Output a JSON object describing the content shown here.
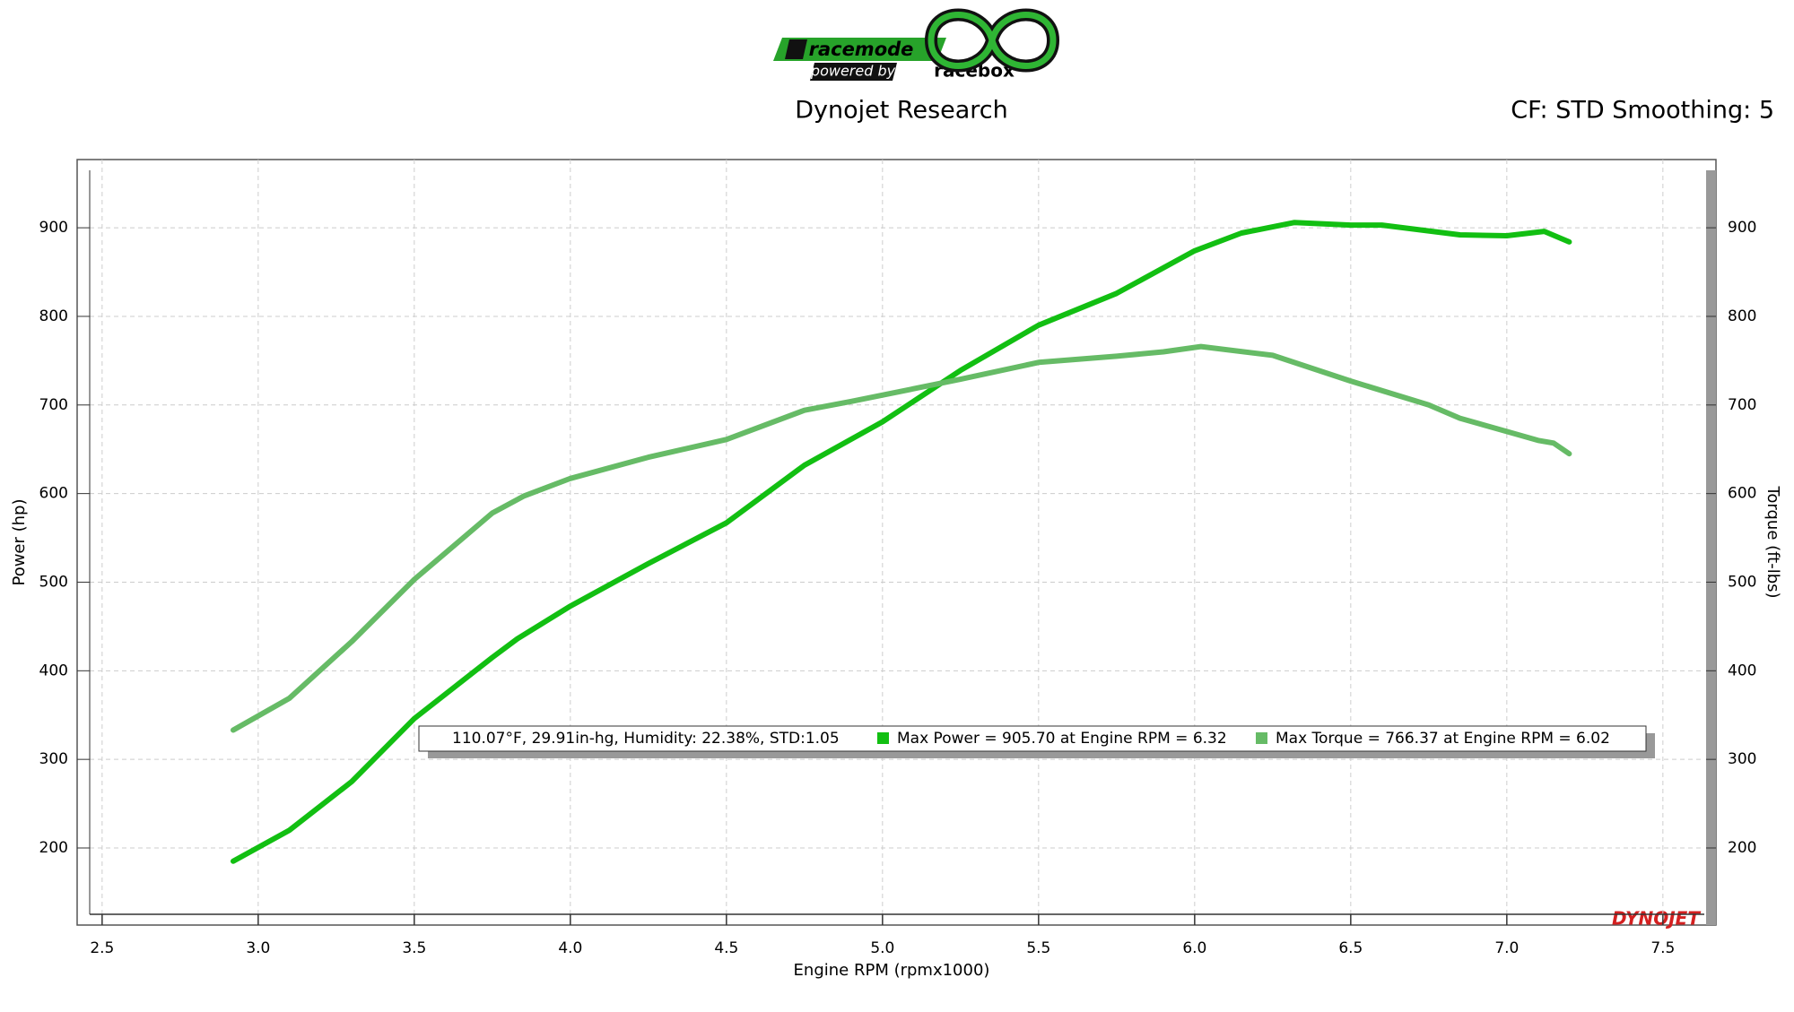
{
  "logo": {
    "brand": "racemode",
    "powered": "powered by",
    "partner": "racebox"
  },
  "watermark": "DYNOJET",
  "chart_data": {
    "type": "line",
    "title": "Dynojet Research",
    "subtitle": "CF: STD Smoothing: 5",
    "x_label": "Engine RPM (rpmx1000)",
    "y_label": "Power (hp)",
    "y2_label": "Torque (ft-lbs)",
    "annotation": "110.07°F, 29.91in-hg, Humidity: 22.38%, STD:1.05",
    "xlim": [
      2.42,
      7.67
    ],
    "xticks": [
      2.5,
      {
        "value": 3,
        "label": "3.0"
      },
      3.5,
      {
        "value": 4,
        "label": "4.0"
      },
      4.5,
      {
        "value": 5,
        "label": "5.0"
      },
      5.5,
      {
        "value": 6,
        "label": "6.0"
      },
      6.5,
      {
        "value": 7,
        "label": "7.0"
      },
      7.5
    ],
    "ylim": [
      113,
      977
    ],
    "yticks": [
      200,
      300,
      400,
      500,
      600,
      700,
      800,
      900
    ],
    "y2lim": [
      113,
      977
    ],
    "y2ticks": [
      200,
      300,
      400,
      500,
      600,
      700,
      800,
      900
    ],
    "grid": true,
    "series": [
      {
        "name": "Max Power = 905.70 at Engine RPM = 6.32",
        "color": "#12bf12",
        "x": [
          2.92,
          3.1,
          3.3,
          3.5,
          3.75,
          3.83,
          4.0,
          4.25,
          4.5,
          4.75,
          5.0,
          5.25,
          5.5,
          5.75,
          6.0,
          6.15,
          6.32,
          6.5,
          6.6,
          6.85,
          7.0,
          7.12,
          7.2
        ],
        "values": [
          185,
          220,
          275,
          346,
          415,
          436,
          473,
          521,
          567,
          632,
          681,
          739,
          790,
          826,
          874,
          894,
          906,
          903,
          903,
          892,
          891,
          896,
          884
        ]
      },
      {
        "name": "Max Torque = 766.37 at Engine RPM = 6.02",
        "color": "#66bb66",
        "axis": "y2",
        "x": [
          2.92,
          3.1,
          3.3,
          3.5,
          3.75,
          3.85,
          4.0,
          4.25,
          4.5,
          4.75,
          4.9,
          5.25,
          5.5,
          5.75,
          5.9,
          6.02,
          6.25,
          6.5,
          6.75,
          6.85,
          7.0,
          7.1,
          7.15,
          7.2
        ],
        "values": [
          333,
          369,
          433,
          503,
          578,
          597,
          617,
          641,
          661,
          694,
          704,
          729,
          748,
          755,
          760,
          766,
          756,
          727,
          700,
          685,
          670,
          660,
          657,
          645
        ]
      }
    ]
  }
}
